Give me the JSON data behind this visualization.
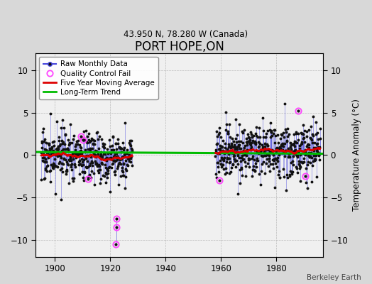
{
  "title": "PORT HOPE,ON",
  "subtitle": "43.950 N, 78.280 W (Canada)",
  "ylabel_right": "Temperature Anomaly (°C)",
  "credit": "Berkeley Earth",
  "ylim": [
    -12,
    12
  ],
  "yticks": [
    -10,
    -5,
    0,
    5,
    10
  ],
  "xlim": [
    1893,
    1997
  ],
  "xticks": [
    1900,
    1920,
    1940,
    1960,
    1980
  ],
  "fig_bg_color": "#d8d8d8",
  "plot_bg_color": "#f0f0f0",
  "raw_line_color": "#4444dd",
  "raw_dot_color": "#111111",
  "qc_fail_color": "#ff44ff",
  "moving_avg_color": "#dd0000",
  "trend_color": "#00bb00",
  "legend_items": [
    "Raw Monthly Data",
    "Quality Control Fail",
    "Five Year Moving Average",
    "Long-Term Trend"
  ],
  "period1_start": 1895,
  "period1_end": 1927,
  "period2_start": 1958,
  "period2_end": 1995,
  "seed": 17
}
